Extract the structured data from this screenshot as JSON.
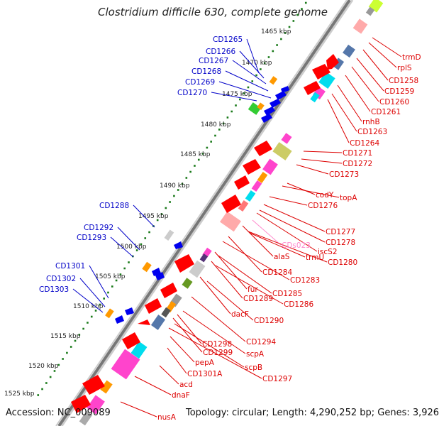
{
  "title": "Clostridium difficile 630, complete genome",
  "accession": "Accession: NC_009089",
  "summary": "Topology: circular; Length: 4,290,252 bp; Genes: 3,926",
  "colors": {
    "forward_label": "#0000c8",
    "reverse_label": "#dd0000",
    "rna_label": "#ff88cc",
    "ticks": "#1a7a1a"
  },
  "ticks": [
    "1465 kbp",
    "1470 kbp",
    "1475 kbp",
    "1480 kbp",
    "1485 kbp",
    "1490 kbp",
    "1495 kbp",
    "1500 kbp",
    "1505 kbp",
    "1510 kbp",
    "1515 kbp",
    "1520 kbp",
    "1525 kbp"
  ],
  "forward_labels": [
    "CD1265",
    "CD1266",
    "CD1267",
    "CD1268",
    "CD1269",
    "CD1270",
    "CD1288",
    "CD1292",
    "CD1293",
    "CD1301",
    "CD1302",
    "CD1303"
  ],
  "reverse_labels": [
    "trmD",
    "rplS",
    "CD1258",
    "CD1259",
    "CD1260",
    "CD1261",
    "rnhB",
    "CD1263",
    "CD1264",
    "CD1271",
    "CD1272",
    "CD1273",
    "codY",
    "topA",
    "CD1276",
    "CD1277",
    "CD1278",
    "CDs023",
    "iscS2",
    "alaS",
    "trmU",
    "CD1280",
    "CD1284",
    "CD1283",
    "fur",
    "CD1285",
    "CD1289",
    "CD1286",
    "dacF",
    "CD1290",
    "CD1294",
    "CD1298",
    "CD1299",
    "scpA",
    "scpB",
    "pepA",
    "CD1301A",
    "CD1297",
    "acd",
    "dnaF",
    "nusA"
  ]
}
